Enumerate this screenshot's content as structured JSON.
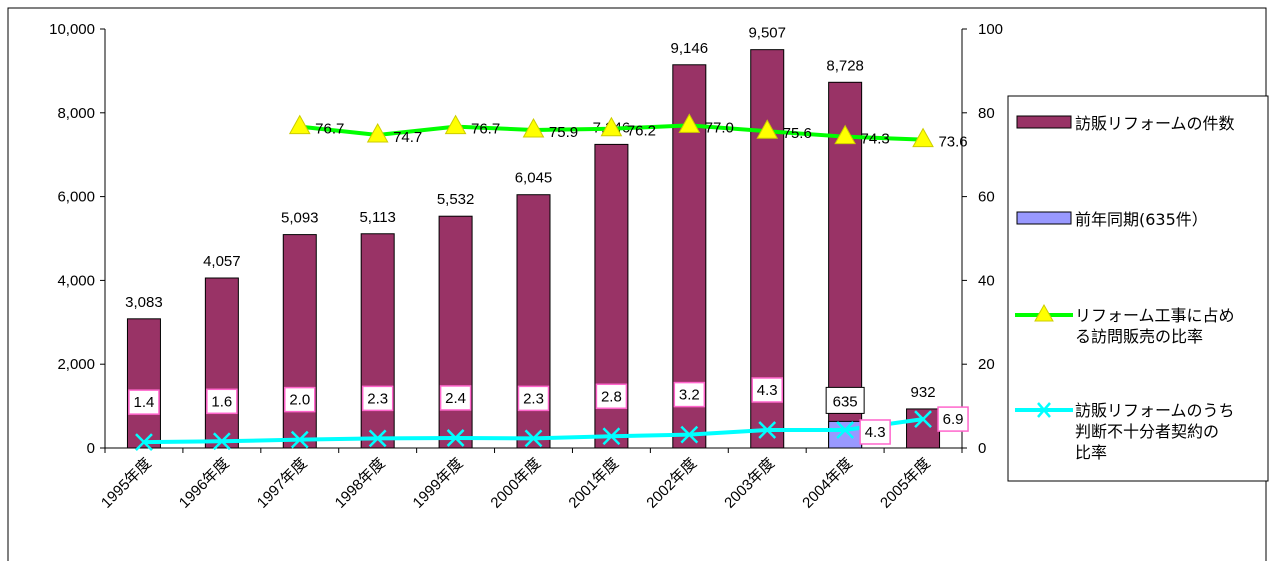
{
  "chart_data": {
    "type": "bar",
    "categories": [
      "1995年度",
      "1996年度",
      "1997年度",
      "1998年度",
      "1999年度",
      "2000年度",
      "2001年度",
      "2002年度",
      "2003年度",
      "2004年度",
      "2005年度"
    ],
    "y_left": {
      "ticks": [
        "0",
        "2,000",
        "4,000",
        "6,000",
        "8,000",
        "10,000"
      ],
      "range": [
        0,
        10000
      ]
    },
    "y_right": {
      "ticks": [
        "0",
        "20",
        "40",
        "60",
        "80",
        "100"
      ],
      "range": [
        0,
        100
      ]
    },
    "series": [
      {
        "name": "訪販リフォームの件数",
        "kind": "bar",
        "axis": "left",
        "color": "#993366",
        "values": [
          3083,
          4057,
          5093,
          5113,
          5532,
          6045,
          7246,
          9146,
          9507,
          8728,
          932
        ],
        "labels": [
          "3,083",
          "4,057",
          "5,093",
          "5,113",
          "5,532",
          "6,045",
          "7,246",
          "9,146",
          "9,507",
          "8,728",
          "932"
        ]
      },
      {
        "name": "前年同期(635件）",
        "kind": "bar",
        "axis": "left",
        "color": "#9999ff",
        "category": "2004年度",
        "value": 635,
        "label": "635"
      },
      {
        "name": "リフォーム工事に占める訪問販売の比率",
        "kind": "line",
        "axis": "right",
        "color": "#00ff00",
        "marker": "triangle",
        "marker_color": "#ffff00",
        "values": [
          null,
          null,
          76.7,
          74.7,
          76.7,
          75.9,
          76.2,
          77.0,
          75.6,
          74.3,
          73.6
        ],
        "labels": [
          "",
          "",
          "76.7",
          "74.7",
          "76.7",
          "75.9",
          "76.2",
          "77.0",
          "75.6",
          "74.3",
          "73.6"
        ]
      },
      {
        "name": "訪販リフォームのうち判断不十分者契約の比率",
        "kind": "line",
        "axis": "right",
        "color": "#00ffff",
        "marker": "x",
        "values": [
          1.4,
          1.6,
          2.0,
          2.3,
          2.4,
          2.3,
          2.8,
          3.2,
          4.3,
          4.3,
          6.9
        ],
        "labels": [
          "1.4",
          "1.6",
          "2.0",
          "2.3",
          "2.4",
          "2.3",
          "2.8",
          "3.2",
          "4.3",
          "4.3",
          "6.9"
        ]
      }
    ],
    "legend": {
      "position": "right",
      "items": [
        {
          "lines": [
            "訪販リフォームの件数"
          ]
        },
        {
          "lines": [
            "前年同期(635件）"
          ]
        },
        {
          "lines": [
            "リフォーム工事に占め",
            "る訪問販売の比率"
          ]
        },
        {
          "lines": [
            "訪販リフォームのうち",
            "判断不十分者契約の",
            "比率"
          ]
        }
      ]
    },
    "grid": false
  }
}
